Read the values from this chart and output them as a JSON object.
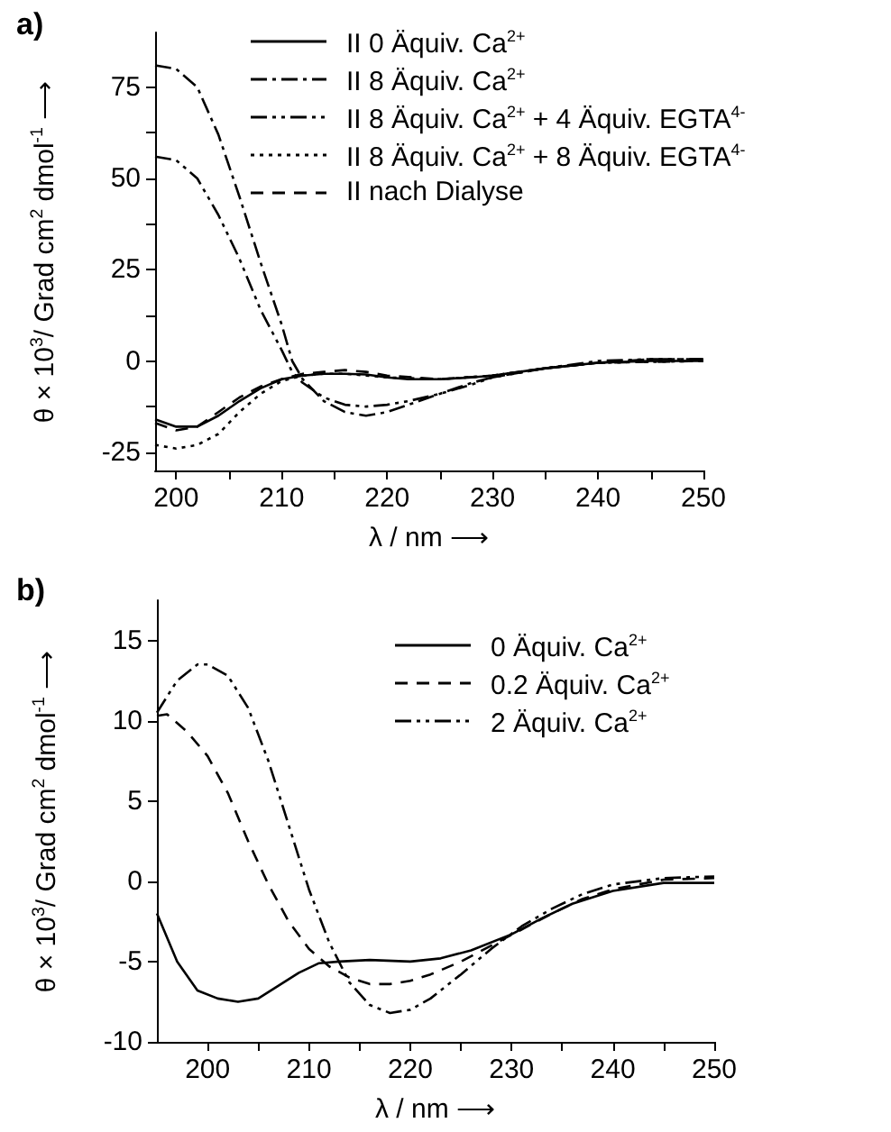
{
  "chart_data": [
    {
      "type": "line",
      "title": "a)",
      "xlabel": "λ / nm ⟶",
      "ylabel": "θ × 10$^{3}$/ Grad cm$^{2}$ dmol$^{-1}$ ⟶",
      "xlim": [
        198,
        250
      ],
      "xticks": [
        200,
        {
          "value": 205,
          "label": null
        },
        210,
        {
          "value": 215,
          "label": null
        },
        220,
        {
          "value": 225,
          "label": null
        },
        230,
        {
          "value": 235,
          "label": null
        },
        240,
        {
          "value": 245,
          "label": null
        },
        250
      ],
      "ylim": [
        -30,
        90
      ],
      "yticks": [
        -25,
        {
          "value": -12.5,
          "label": null
        },
        0,
        {
          "value": 12.5,
          "label": null
        },
        25,
        {
          "value": 37.5,
          "label": null
        },
        50,
        {
          "value": 62.5,
          "label": null
        },
        75
      ],
      "grid": false,
      "legend": "top right",
      "marker": "none",
      "series": [
        {
          "name": "II  0 Äquiv. Ca$^{2+}$",
          "color": "#000000",
          "line_style": "solid",
          "x": [
            198,
            200,
            202,
            204,
            206,
            208,
            210,
            212,
            214,
            216,
            218,
            220,
            222,
            225,
            228,
            230,
            235,
            240,
            245,
            250
          ],
          "values": [
            -16,
            -18,
            -18,
            -15,
            -11,
            -7.5,
            -5,
            -4,
            -3.5,
            -3.5,
            -3.7,
            -4.5,
            -5,
            -5,
            -4.5,
            -4,
            -2,
            -0.5,
            0,
            0
          ]
        },
        {
          "name": "II  8 Äquiv. Ca$^{2+}$",
          "color": "#000000",
          "line_style": "dashdot",
          "x": [
            198,
            200,
            202,
            204,
            206,
            208,
            210,
            211,
            212,
            214,
            216,
            218,
            220,
            222,
            225,
            228,
            230,
            235,
            240,
            245,
            250
          ],
          "values": [
            81,
            80,
            75,
            62,
            45,
            27,
            10,
            0,
            -5,
            -11,
            -14,
            -15,
            -14,
            -12,
            -9,
            -6,
            -4.5,
            -2,
            -0.5,
            0.5,
            0.5
          ]
        },
        {
          "name": "II  8 Äquiv. Ca$^{2+}$ + 4 Äquiv. EGTA$^{4-}$",
          "color": "#000000",
          "line_style": "dashdotdot",
          "x": [
            198,
            200,
            202,
            204,
            206,
            208,
            210,
            211,
            212,
            214,
            216,
            218,
            220,
            222,
            225,
            228,
            230,
            235,
            240,
            245,
            250
          ],
          "values": [
            56,
            55,
            50,
            40,
            28,
            14,
            3,
            -3,
            -6,
            -10,
            -12,
            -12.5,
            -12,
            -11,
            -9,
            -6.5,
            -4.5,
            -2,
            0,
            0.5,
            0.5
          ]
        },
        {
          "name": "II  8 Äquiv. Ca$^{2+}$ + 8 Äquiv. EGTA$^{4-}$",
          "color": "#000000",
          "line_style": "dotted",
          "x": [
            198,
            200,
            202,
            204,
            206,
            208,
            210,
            212,
            214,
            216,
            218,
            220,
            225,
            230,
            235,
            240,
            250
          ],
          "values": [
            -23,
            -24,
            -23,
            -20,
            -14,
            -9,
            -5.5,
            -4,
            -3.5,
            -3.5,
            -4,
            -4.5,
            -5,
            -4,
            -2,
            -0.5,
            0
          ]
        },
        {
          "name": "II  nach Dialyse",
          "color": "#000000",
          "line_style": "dashed",
          "x": [
            198,
            200,
            202,
            204,
            206,
            208,
            210,
            212,
            214,
            216,
            218,
            220,
            225,
            230,
            235,
            240,
            250
          ],
          "values": [
            -17,
            -19,
            -18,
            -14,
            -10,
            -7,
            -5,
            -3.5,
            -3,
            -2.5,
            -3,
            -4,
            -5,
            -4,
            -2,
            -0.5,
            0
          ]
        }
      ]
    },
    {
      "type": "line",
      "title": "b)",
      "xlabel": "λ / nm ⟶",
      "ylabel": "θ × 10$^{3}$/ Grad cm$^{2}$ dmol$^{-1}$ ⟶",
      "xlim": [
        195,
        250
      ],
      "xticks": [
        200,
        {
          "value": 205,
          "label": null
        },
        210,
        {
          "value": 215,
          "label": null
        },
        220,
        {
          "value": 225,
          "label": null
        },
        230,
        {
          "value": 235,
          "label": null
        },
        240,
        {
          "value": 245,
          "label": null
        },
        250
      ],
      "ylim": [
        -10,
        17.5
      ],
      "yticks": [
        -10,
        -5,
        0,
        5,
        10,
        15
      ],
      "grid": false,
      "legend": "top right",
      "marker": "none",
      "series": [
        {
          "name": "0 Äquiv. Ca$^{2+}$",
          "color": "#000000",
          "line_style": "solid",
          "x": [
            195,
            197,
            199,
            201,
            203,
            205,
            207,
            209,
            211,
            213,
            216,
            220,
            223,
            226,
            230,
            233,
            236,
            240,
            245,
            250
          ],
          "values": [
            -2,
            -5,
            -6.8,
            -7.3,
            -7.5,
            -7.3,
            -6.5,
            -5.7,
            -5.1,
            -5,
            -4.9,
            -5,
            -4.8,
            -4.3,
            -3.3,
            -2.3,
            -1.4,
            -0.6,
            -0.1,
            -0.1
          ]
        },
        {
          "name": "0.2 Äquiv. Ca$^{2+}$",
          "color": "#000000",
          "line_style": "dashed",
          "x": [
            195,
            196,
            198,
            200,
            202,
            204,
            206,
            208,
            210,
            212,
            214,
            216,
            218,
            220,
            222,
            225,
            228,
            231,
            234,
            237,
            240,
            245,
            250
          ],
          "values": [
            10.3,
            10.4,
            9.3,
            7.8,
            5.5,
            2.5,
            -0.2,
            -2.5,
            -4.2,
            -5.3,
            -6,
            -6.4,
            -6.4,
            -6.2,
            -5.8,
            -5,
            -4,
            -3,
            -2,
            -1.1,
            -0.5,
            0.1,
            0.2
          ]
        },
        {
          "name": "2 Äquiv. Ca$^{2+}$",
          "color": "#000000",
          "line_style": "dashdotdot",
          "x": [
            195,
            197,
            199,
            200,
            202,
            204,
            206,
            208,
            210,
            212,
            214,
            216,
            218,
            220,
            222,
            225,
            228,
            231,
            234,
            237,
            240,
            245,
            250
          ],
          "values": [
            10.5,
            12.5,
            13.5,
            13.5,
            12.8,
            10.8,
            7.5,
            3.5,
            -0.5,
            -3.8,
            -6.3,
            -7.7,
            -8.2,
            -8,
            -7.3,
            -5.8,
            -4.2,
            -2.8,
            -1.7,
            -0.8,
            -0.2,
            0.2,
            0.3
          ]
        }
      ]
    }
  ]
}
